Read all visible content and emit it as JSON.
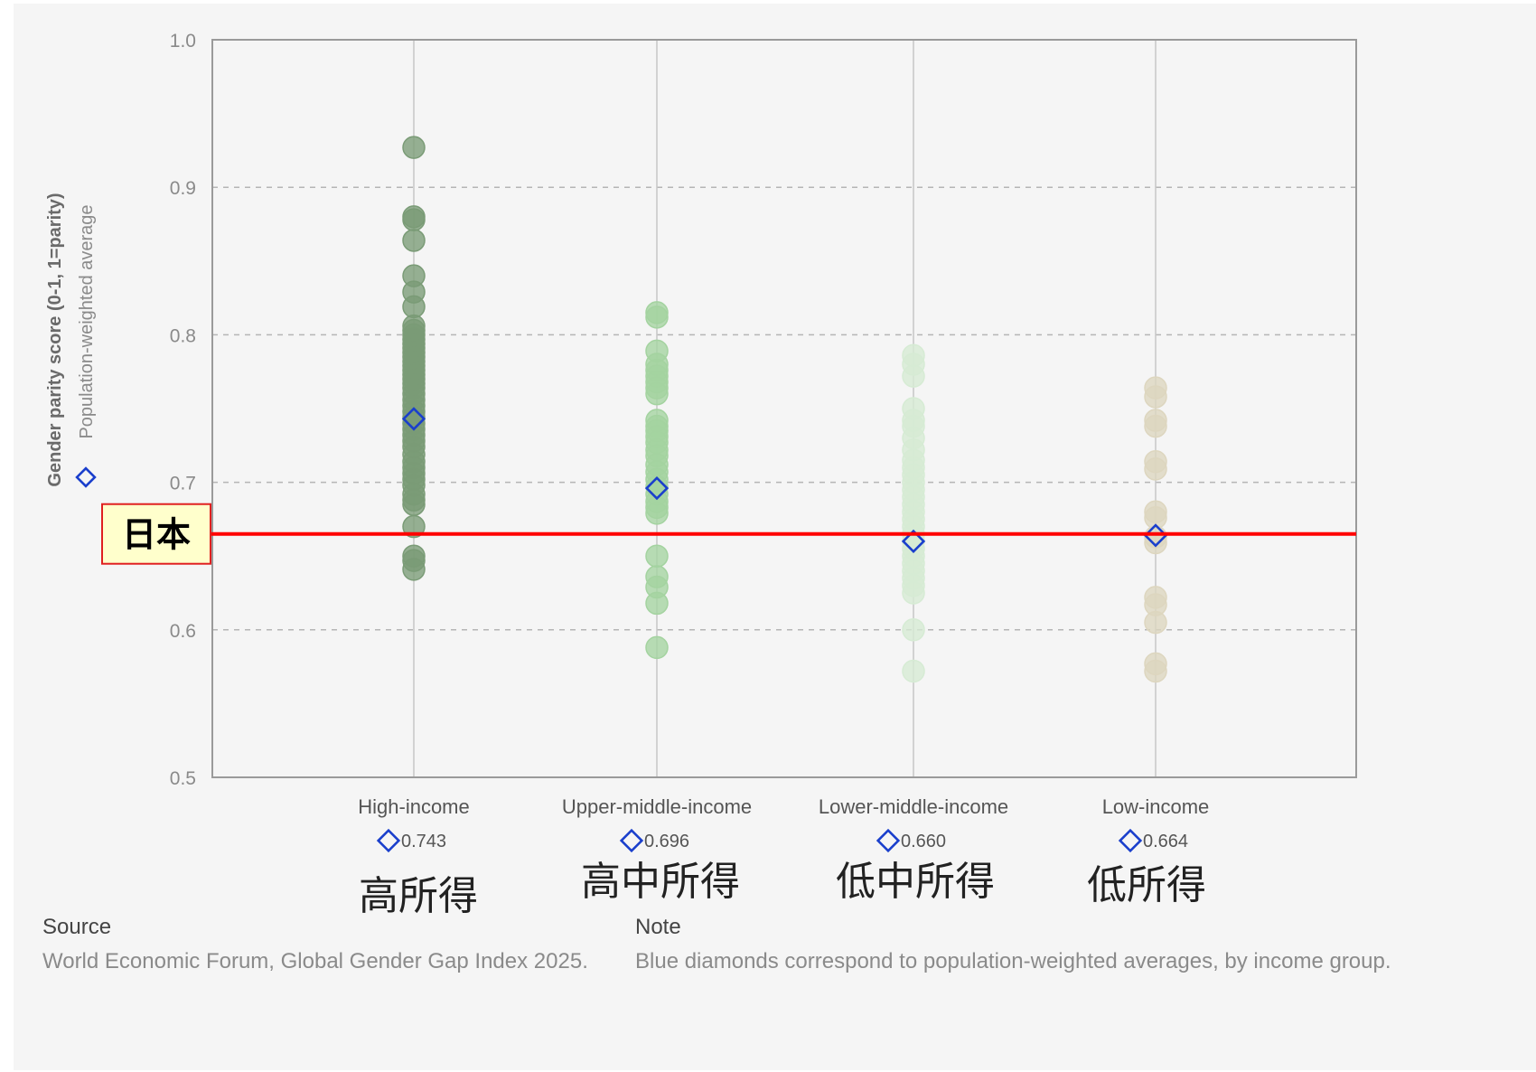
{
  "chart_data": {
    "type": "scatter",
    "ylabel": "Gender parity score (0-1, 1=parity)",
    "legend_label": "Population-weighted average",
    "ylim": [
      0.5,
      1.0
    ],
    "yticks": [
      "0.5",
      "0.6",
      "0.7",
      "0.8",
      "0.9",
      "1.0"
    ],
    "grid": "horizontal dashed",
    "categories": [
      {
        "name": "High-income",
        "jp": "高所得",
        "avg": 0.743,
        "avg_label": "0.743",
        "color": "#7a9b76",
        "values": [
          0.927,
          0.88,
          0.878,
          0.864,
          0.84,
          0.829,
          0.819,
          0.806,
          0.803,
          0.8,
          0.797,
          0.794,
          0.791,
          0.788,
          0.785,
          0.782,
          0.779,
          0.776,
          0.773,
          0.77,
          0.767,
          0.764,
          0.76,
          0.756,
          0.752,
          0.748,
          0.744,
          0.74,
          0.736,
          0.732,
          0.728,
          0.724,
          0.719,
          0.714,
          0.71,
          0.706,
          0.702,
          0.698,
          0.692,
          0.688,
          0.685,
          0.67,
          0.65,
          0.647,
          0.641
        ]
      },
      {
        "name": "Upper-middle-income",
        "jp": "高中所得",
        "avg": 0.696,
        "avg_label": "0.696",
        "color": "#a4d3a0",
        "values": [
          0.815,
          0.812,
          0.789,
          0.78,
          0.776,
          0.772,
          0.768,
          0.764,
          0.76,
          0.742,
          0.738,
          0.735,
          0.731,
          0.727,
          0.722,
          0.718,
          0.712,
          0.707,
          0.702,
          0.697,
          0.692,
          0.687,
          0.683,
          0.679,
          0.65,
          0.636,
          0.629,
          0.618,
          0.588
        ]
      },
      {
        "name": "Lower-middle-income",
        "jp": "低中所得",
        "avg": 0.66,
        "avg_label": "0.660",
        "color": "#d6ebd4",
        "values": [
          0.786,
          0.78,
          0.772,
          0.75,
          0.742,
          0.738,
          0.73,
          0.722,
          0.715,
          0.71,
          0.705,
          0.7,
          0.695,
          0.69,
          0.685,
          0.68,
          0.675,
          0.67,
          0.665,
          0.66,
          0.655,
          0.65,
          0.645,
          0.64,
          0.635,
          0.63,
          0.625,
          0.6,
          0.572
        ]
      },
      {
        "name": "Low-income",
        "jp": "低所得",
        "avg": 0.664,
        "avg_label": "0.664",
        "color": "#ddd6bf",
        "values": [
          0.764,
          0.758,
          0.742,
          0.738,
          0.714,
          0.709,
          0.68,
          0.676,
          0.663,
          0.659,
          0.622,
          0.617,
          0.605,
          0.577,
          0.572
        ]
      }
    ],
    "reference_line": {
      "label": "日本",
      "value": 0.665,
      "color": "#ff0000"
    },
    "marker_color": "#1a3fcc"
  },
  "footer": {
    "source_heading": "Source",
    "source_text": "World Economic Forum, Global Gender Gap Index 2025.",
    "note_heading": "Note",
    "note_text": "Blue diamonds correspond to population-weighted averages, by income group."
  }
}
